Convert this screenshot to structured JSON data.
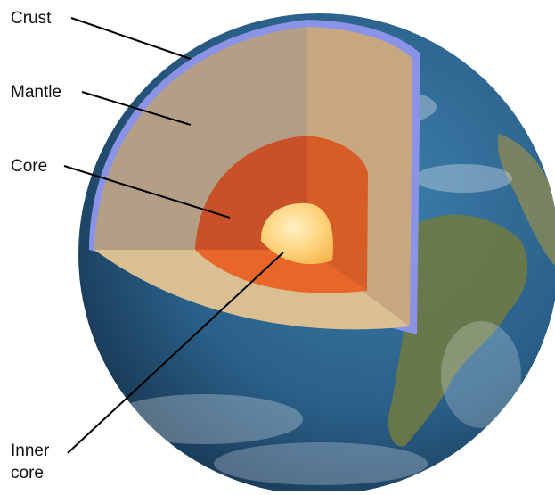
{
  "labels": {
    "crust": "Crust",
    "mantle": "Mantle",
    "core": "Core",
    "inner_core_line1": "Inner",
    "inner_core_line2": "core"
  },
  "colors": {
    "ocean": "#2f6a93",
    "ocean_dark": "#1e4868",
    "land": "#6f7a45",
    "crust": "#8a93e6",
    "mantle": "#b49f86",
    "mantle_side": "#c7a780",
    "mantle_floor": "#d9bf92",
    "core_outer": "#d25a26",
    "core_light": "#e8662a",
    "inner_core": "#ffd27a",
    "leader": "#000000"
  }
}
